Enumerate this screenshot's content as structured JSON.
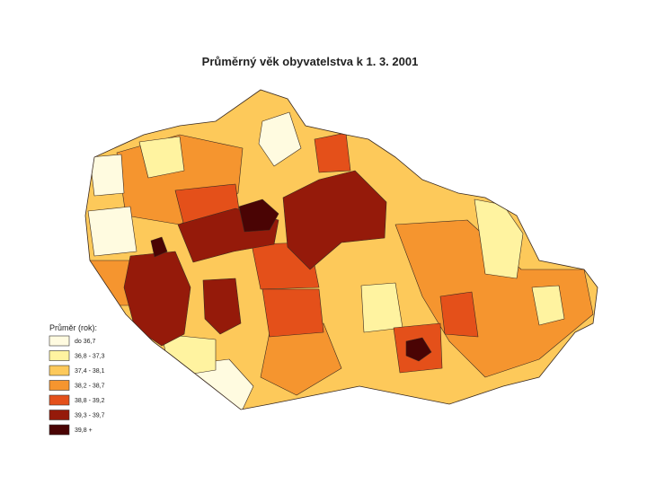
{
  "title": "Průměrný věk obyvatelstva k 1. 3. 2001",
  "legend": {
    "title": "Průměr (rok):",
    "items": [
      {
        "label": "do 36,7",
        "color": "#fffbe0"
      },
      {
        "label": "36,8 - 37,3",
        "color": "#fff3a0"
      },
      {
        "label": "37,4 - 38,1",
        "color": "#fdc95a"
      },
      {
        "label": "38,2 - 38,7",
        "color": "#f5952f"
      },
      {
        "label": "38,8 - 39,2",
        "color": "#e4501a"
      },
      {
        "label": "39,3 - 39,7",
        "color": "#951a0a"
      },
      {
        "label": "39,8 +",
        "color": "#4a0404"
      }
    ]
  }
}
